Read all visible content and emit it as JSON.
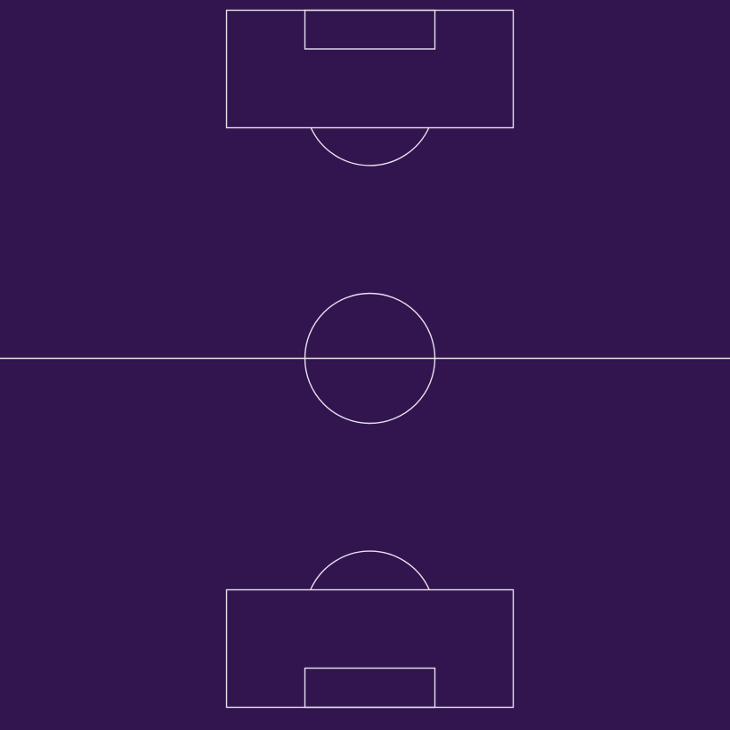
{
  "pitch": {
    "colors": {
      "background": "#32154f",
      "lines": "#e9e1ee"
    }
  }
}
